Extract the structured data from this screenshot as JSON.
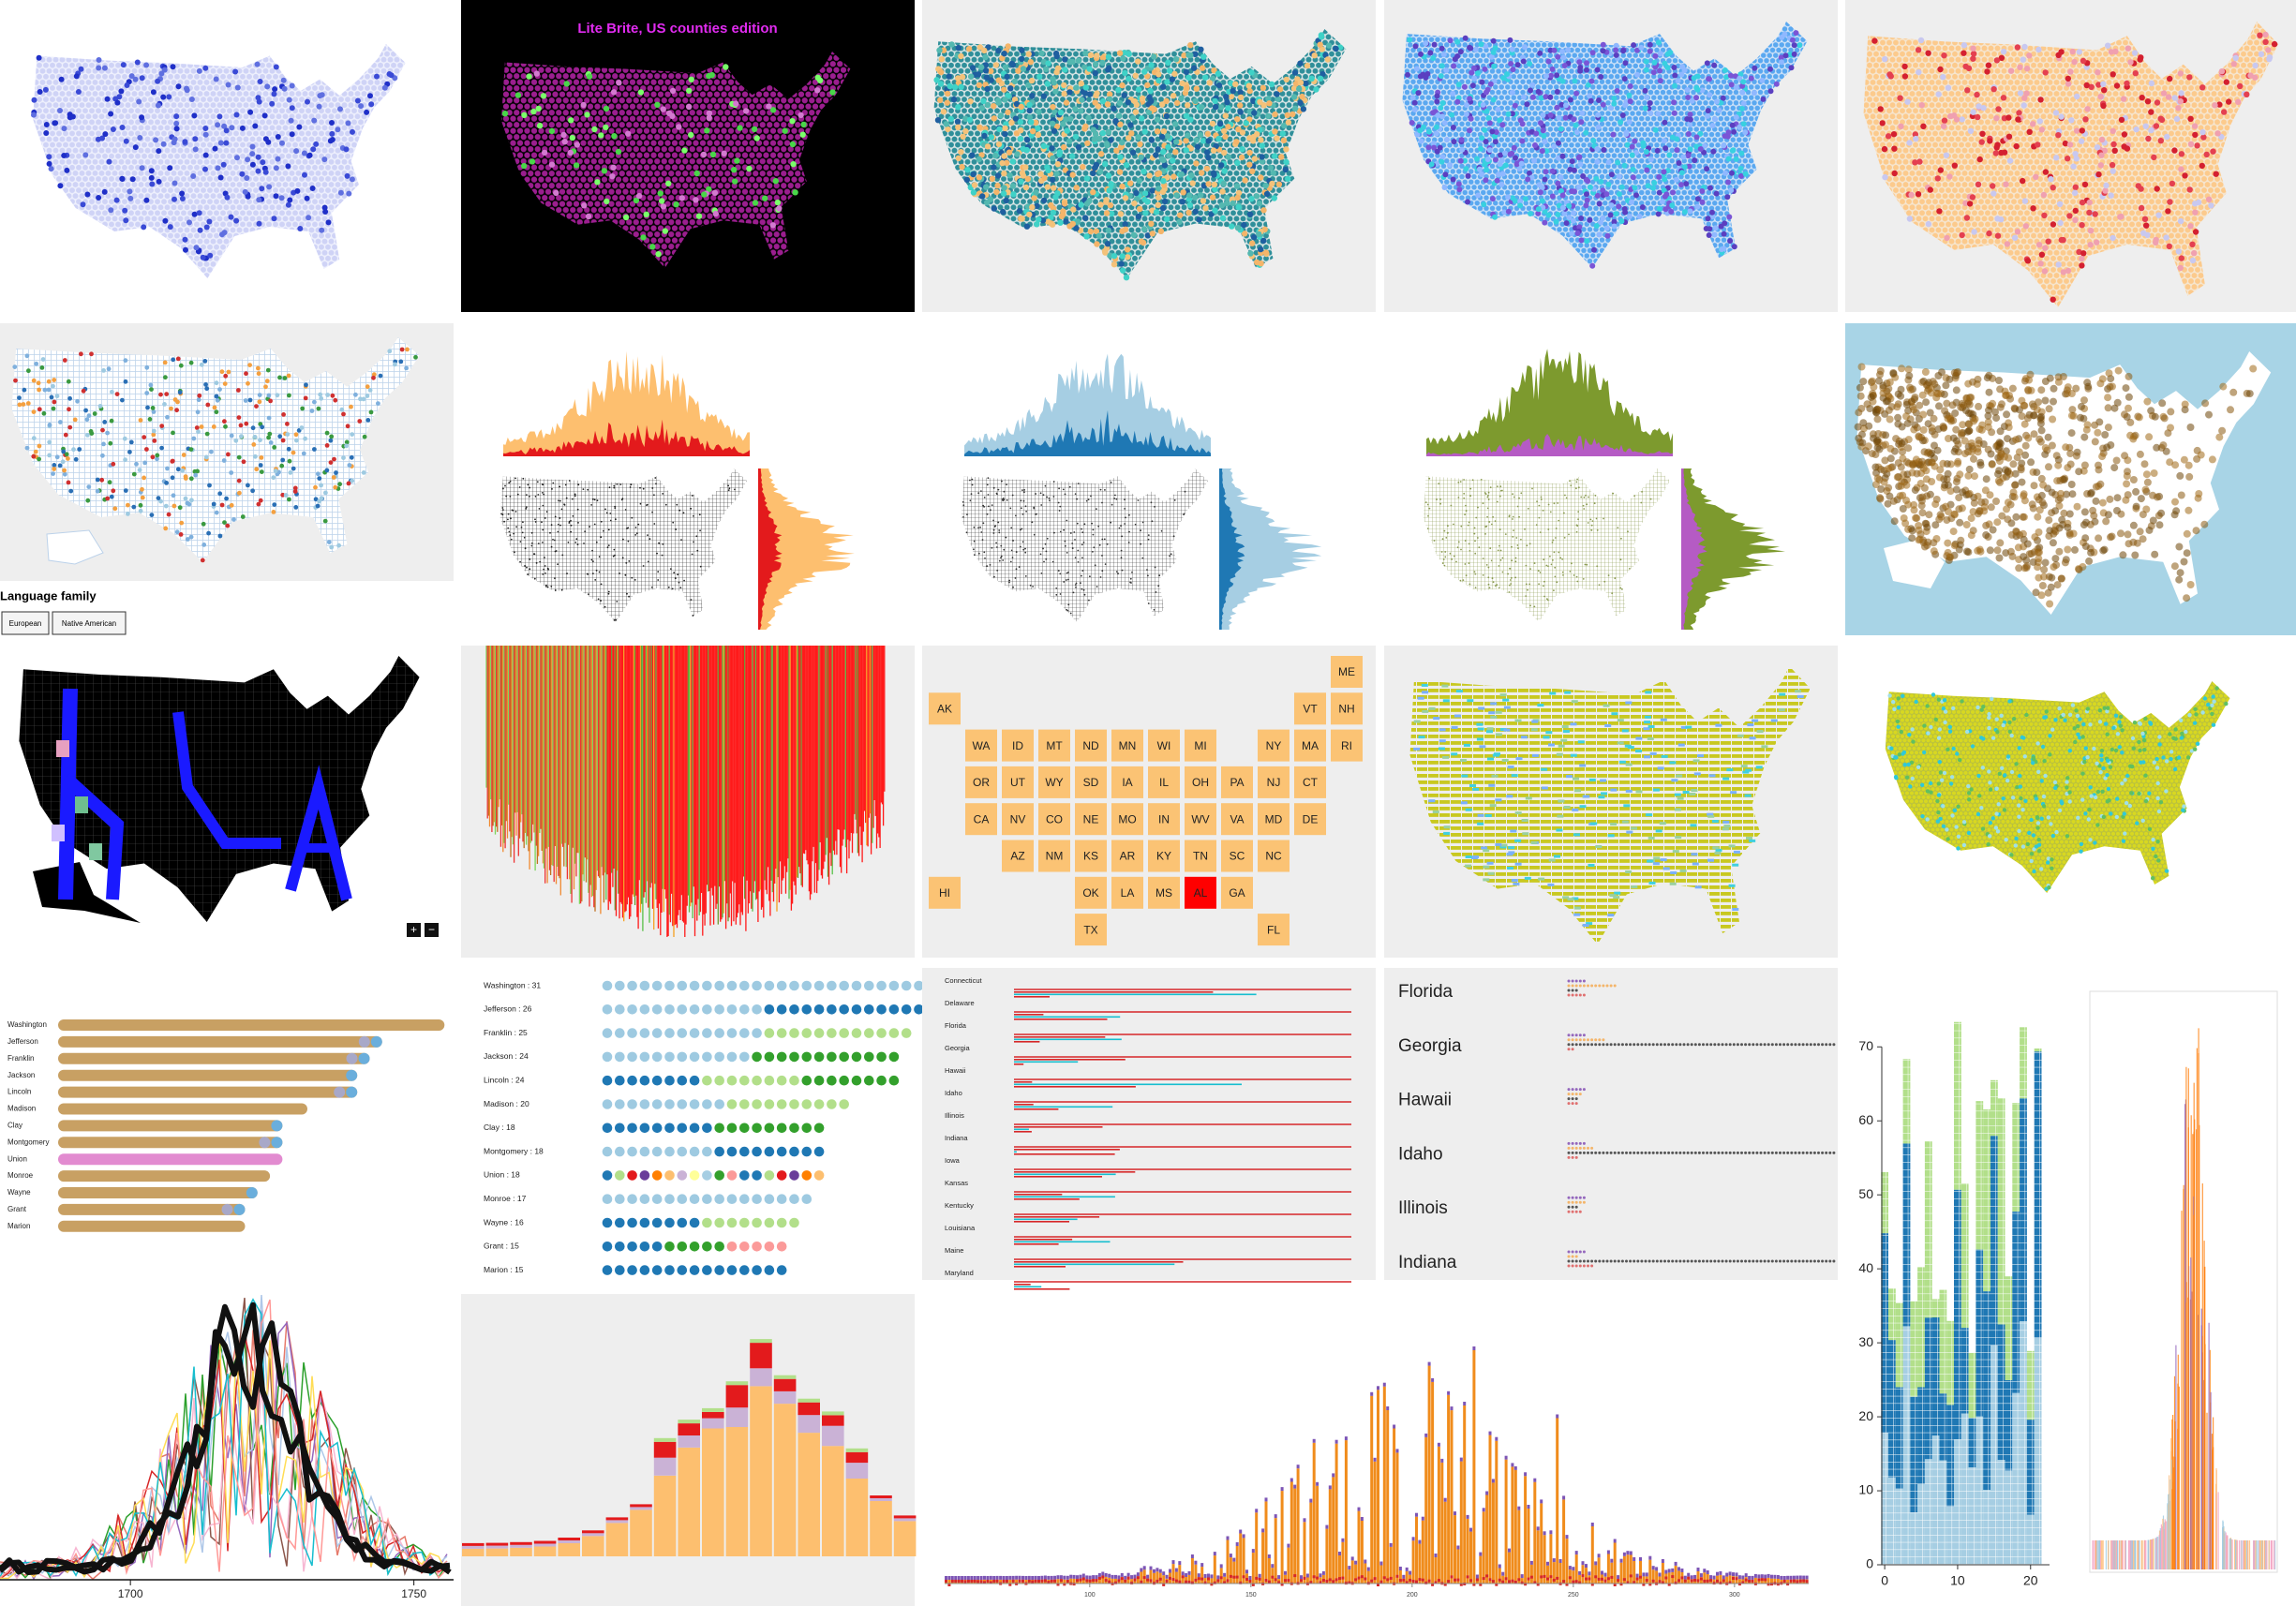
{
  "lite_brite": {
    "title": "Lite Brite, US counties edition"
  },
  "language_filter": {
    "title": "Language family",
    "buttons": [
      "European",
      "Native American"
    ]
  },
  "zoom": [
    "+",
    "−"
  ],
  "tile_map": {
    "highlight": "AL",
    "highlight_color": "#ff0000",
    "color": "#fbc374",
    "rows": [
      [
        null,
        null,
        null,
        null,
        null,
        null,
        null,
        null,
        null,
        null,
        null,
        "ME"
      ],
      [
        "AK",
        null,
        null,
        null,
        null,
        null,
        null,
        null,
        null,
        null,
        "VT",
        "NH"
      ],
      [
        null,
        "WA",
        "ID",
        "MT",
        "ND",
        "MN",
        "WI",
        "MI",
        null,
        "NY",
        "MA",
        "RI"
      ],
      [
        null,
        "OR",
        "UT",
        "WY",
        "SD",
        "IA",
        "IL",
        "OH",
        "PA",
        "NJ",
        "CT",
        null
      ],
      [
        null,
        "CA",
        "NV",
        "CO",
        "NE",
        "MO",
        "IN",
        "WV",
        "VA",
        "MD",
        "DE",
        null
      ],
      [
        null,
        null,
        "AZ",
        "NM",
        "KS",
        "AR",
        "KY",
        "TN",
        "SC",
        "NC",
        null,
        null
      ],
      [
        "HI",
        null,
        null,
        null,
        "OK",
        "LA",
        "MS",
        "AL",
        "GA",
        null,
        null,
        null
      ],
      [
        null,
        null,
        null,
        null,
        "TX",
        null,
        null,
        null,
        null,
        "FL",
        null,
        null
      ]
    ]
  },
  "county_names": {
    "items": [
      {
        "name": "Washington",
        "label": "Washington : 31",
        "count": 31
      },
      {
        "name": "Jefferson",
        "label": "Jefferson : 26",
        "count": 26
      },
      {
        "name": "Franklin",
        "label": "Franklin : 25",
        "count": 25
      },
      {
        "name": "Jackson",
        "label": "Jackson : 24",
        "count": 24
      },
      {
        "name": "Lincoln",
        "label": "Lincoln : 24",
        "count": 24
      },
      {
        "name": "Madison",
        "label": "Madison : 20",
        "count": 20
      },
      {
        "name": "Clay",
        "label": "Clay : 18",
        "count": 18
      },
      {
        "name": "Montgomery",
        "label": "Montgomery : 18",
        "count": 18
      },
      {
        "name": "Union",
        "label": "Union : 18",
        "count": 18
      },
      {
        "name": "Monroe",
        "label": "Monroe : 17",
        "count": 17
      },
      {
        "name": "Wayne",
        "label": "Wayne : 16",
        "count": 16
      },
      {
        "name": "Grant",
        "label": "Grant : 15",
        "count": 15
      },
      {
        "name": "Marion",
        "label": "Marion : 15",
        "count": 15
      }
    ]
  },
  "state_lines": {
    "names": [
      "Connecticut",
      "Delaware",
      "Florida",
      "Georgia",
      "Hawaii",
      "Idaho",
      "Illinois",
      "Indiana",
      "Iowa",
      "Kansas",
      "Kentucky",
      "Louisiana",
      "Maine",
      "Maryland"
    ]
  },
  "state_dots": {
    "names": [
      "Florida",
      "Georgia",
      "Hawaii",
      "Idaho",
      "Illinois",
      "Indiana"
    ]
  },
  "stacked_columns": {
    "ylim": [
      0,
      77
    ],
    "yticks": [
      0,
      10,
      20,
      30,
      40,
      50,
      60,
      70
    ],
    "xlim": [
      -0.4,
      22.6
    ],
    "xticks": [
      0,
      10,
      20
    ]
  },
  "line_chart": {
    "xlim": [
      1677,
      1757
    ],
    "xticks": [
      1700,
      1750
    ]
  },
  "histogram": {
    "xlim": [
      55,
      323
    ],
    "xticks": [
      100,
      150,
      200,
      250,
      300
    ]
  }
}
